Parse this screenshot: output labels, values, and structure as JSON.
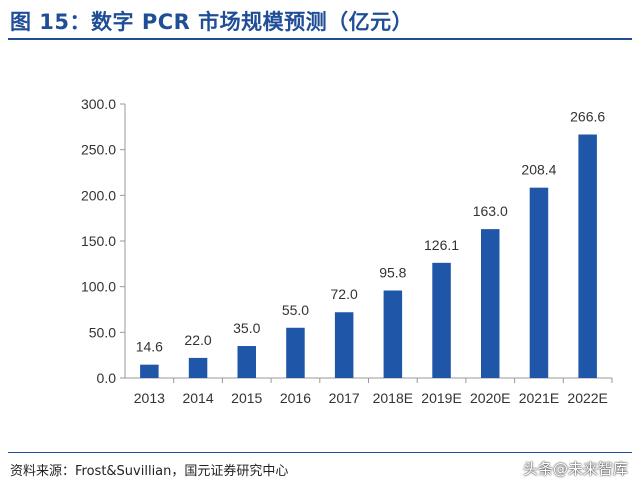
{
  "header": {
    "title": "图 15：数字 PCR 市场规模预测（亿元）"
  },
  "footer": {
    "source": "资料来源：Frost&Suvillian，国元证券研究中心",
    "watermark": "头条@未来智库"
  },
  "chart_data": {
    "type": "bar",
    "title": "图 15：数字 PCR 市场规模预测（亿元）",
    "categories": [
      "2013",
      "2014",
      "2015",
      "2016",
      "2017",
      "2018E",
      "2019E",
      "2020E",
      "2021E",
      "2022E"
    ],
    "values": [
      14.6,
      22.0,
      35.0,
      55.0,
      72.0,
      95.8,
      126.1,
      163.0,
      208.4,
      266.6
    ],
    "value_labels": [
      "14.6",
      "22.0",
      "35.0",
      "55.0",
      "72.0",
      "95.8",
      "126.1",
      "163.0",
      "208.4",
      "266.6"
    ],
    "y_ticks": [
      "0.0",
      "50.0",
      "100.0",
      "150.0",
      "200.0",
      "250.0",
      "300.0"
    ],
    "ylim": [
      0,
      300
    ],
    "xlabel": "",
    "ylabel": "",
    "grid": false,
    "bar_color": "#1f56a8"
  }
}
